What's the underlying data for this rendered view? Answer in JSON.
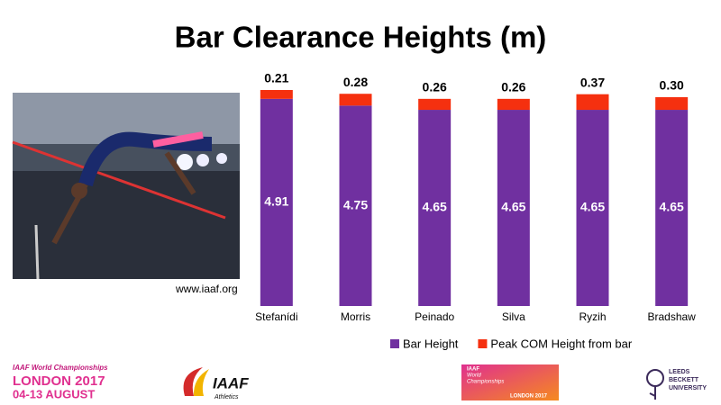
{
  "chart_data": {
    "type": "stacked-bar",
    "title": "Bar Clearance Heights (m)",
    "categories": [
      "Stefanídi",
      "Morris",
      "Peinado",
      "Silva",
      "Ryzih",
      "Bradshaw"
    ],
    "series": [
      {
        "name": "Bar Height",
        "color": "#7030a0",
        "values": [
          4.91,
          4.75,
          4.65,
          4.65,
          4.65,
          4.65
        ]
      },
      {
        "name": "Peak COM Height from bar",
        "color": "#f5300f",
        "values": [
          0.21,
          0.28,
          0.26,
          0.26,
          0.37,
          0.3
        ],
        "value_labels": [
          "0.21",
          "0.28",
          "0.26",
          "0.26",
          "0.37",
          "0.30"
        ]
      }
    ],
    "legend": "bottom"
  },
  "photo": {
    "caption": "www.iaaf.org"
  },
  "footer": {
    "left_logo": {
      "line1": "IAAF World Championships",
      "line2": "LONDON 2017",
      "line3": "04-13 AUGUST"
    },
    "iaaf_logo": {
      "name": "IAAF",
      "sub": "Athletics"
    },
    "center_logo": {
      "line1": "IAAF",
      "line2": "World",
      "line3": "Championships",
      "line4": "LONDON 2017"
    },
    "right_logo": {
      "line1": "LEEDS",
      "line2": "BECKETT",
      "line3": "UNIVERSITY"
    }
  }
}
